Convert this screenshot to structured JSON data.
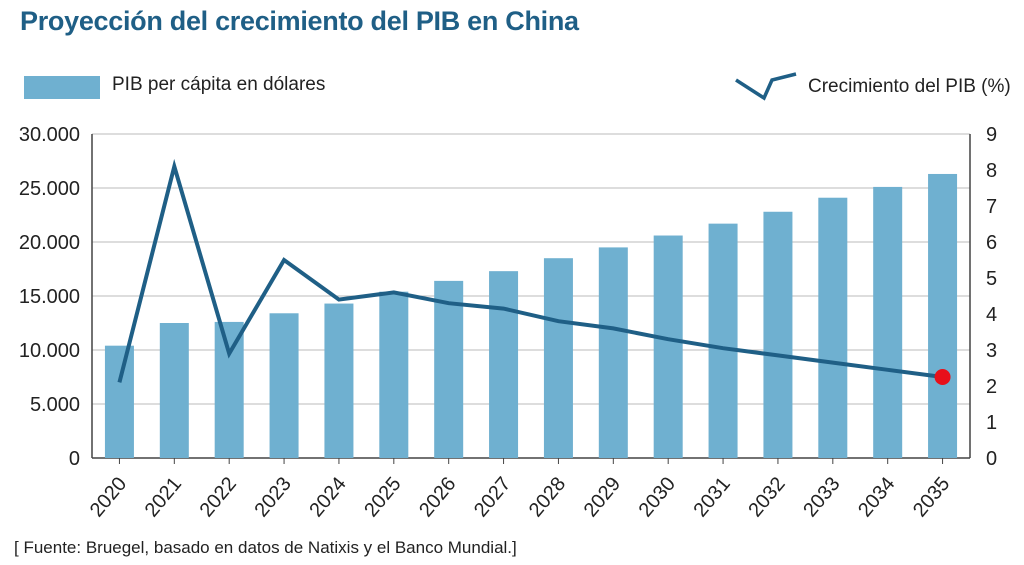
{
  "chart_data": {
    "type": "bar",
    "title": "Proyección del crecimiento del PIB en China",
    "categories": [
      "2020",
      "2021",
      "2022",
      "2023",
      "2024",
      "2025",
      "2026",
      "2027",
      "2028",
      "2029",
      "2030",
      "2031",
      "2032",
      "2033",
      "2034",
      "2035"
    ],
    "series": [
      {
        "name": "PIB per cápita en dólares",
        "type": "bar",
        "axis": "left",
        "values": [
          10400,
          12500,
          12600,
          13400,
          14300,
          15400,
          16400,
          17300,
          18500,
          19500,
          20600,
          21700,
          22800,
          24100,
          25100,
          26300
        ]
      },
      {
        "name": "Crecimiento del PIB (%)",
        "type": "line",
        "axis": "right",
        "values": [
          2.1,
          8.1,
          2.9,
          5.5,
          4.4,
          4.6,
          4.3,
          4.15,
          3.8,
          3.6,
          3.3,
          3.05,
          2.85,
          2.65,
          2.45,
          2.25
        ]
      }
    ],
    "y_left": {
      "ylim": [
        0,
        30000
      ],
      "ticks": [
        "0",
        "5.000",
        "10.000",
        "15.000",
        "20.000",
        "25.000",
        "30.000"
      ]
    },
    "y_right": {
      "ylim": [
        0,
        9
      ],
      "ticks": [
        "0",
        "1",
        "2",
        "3",
        "4",
        "5",
        "6",
        "7",
        "8",
        "9"
      ]
    },
    "grid": true,
    "legend_placement": "top",
    "highlight_point": {
      "category": "2035",
      "series": "Crecimiento del PIB (%)"
    }
  },
  "source": "[ Fuente: Bruegel, basado en datos de Natixis y el Banco Mundial.]",
  "colors": {
    "bar": "#6fb0d0",
    "line": "#1f5f86",
    "title": "#1f5f86",
    "grid": "#bbbbbb",
    "marker": "#e8101a"
  }
}
